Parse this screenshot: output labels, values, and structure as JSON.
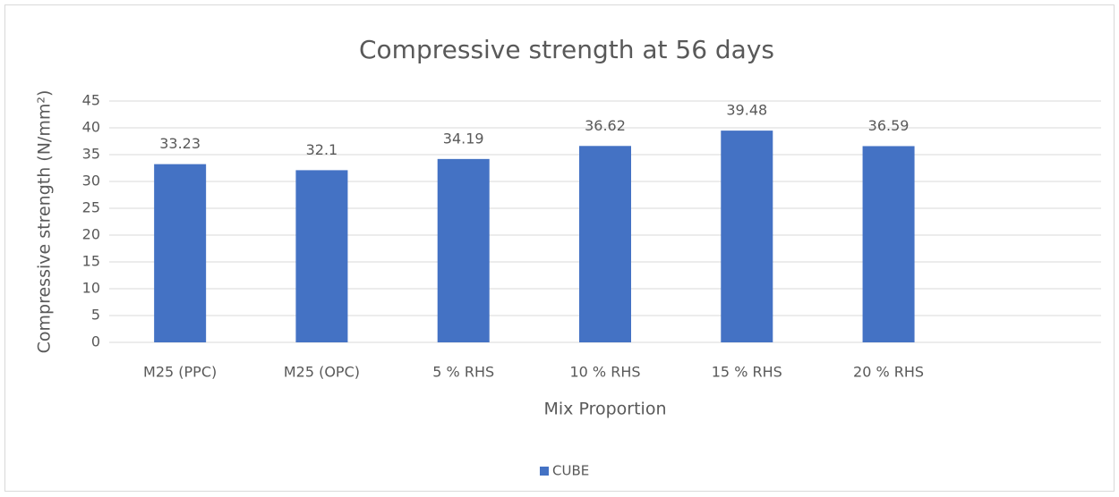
{
  "chart_data": {
    "type": "bar",
    "title": "Compressive strength at 56 days",
    "x_label": "Mix Proportion",
    "y_label": "Compressive strength (N/mm²)",
    "categories": [
      "M25 (PPC)",
      "M25 (OPC)",
      "5 % RHS",
      "10 % RHS",
      "15 % RHS",
      "20 % RHS",
      null
    ],
    "series": [
      {
        "name": "CUBE",
        "color": "#4472c4",
        "values": [
          33.23,
          32.1,
          34.19,
          36.62,
          39.48,
          36.59,
          null
        ]
      }
    ],
    "ylim": [
      0,
      45
    ],
    "yticks": [
      0,
      5,
      10,
      15,
      20,
      25,
      30,
      35,
      40,
      45
    ],
    "grid": true,
    "data_labels": true,
    "legend": "bottom"
  }
}
